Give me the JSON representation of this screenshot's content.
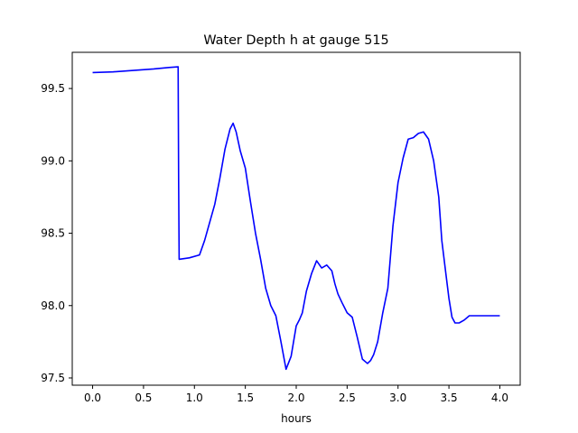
{
  "chart_data": {
    "type": "line",
    "title": "Water Depth h at gauge 515",
    "xlabel": "hours",
    "ylabel": "",
    "xlim": [
      -0.2,
      4.2
    ],
    "ylim": [
      97.45,
      99.75
    ],
    "xticks": [
      0.0,
      0.5,
      1.0,
      1.5,
      2.0,
      2.5,
      3.0,
      3.5,
      4.0
    ],
    "xtick_labels": [
      "0.0",
      "0.5",
      "1.0",
      "1.5",
      "2.0",
      "2.5",
      "3.0",
      "3.5",
      "4.0"
    ],
    "yticks": [
      97.5,
      98.0,
      98.5,
      99.0,
      99.5
    ],
    "ytick_labels": [
      "97.5",
      "98.0",
      "98.5",
      "99.0",
      "99.5"
    ],
    "grid": false,
    "series": [
      {
        "color": "#0000ff",
        "x": [
          0.0,
          0.2,
          0.4,
          0.6,
          0.75,
          0.84,
          0.845,
          0.85,
          0.95,
          1.05,
          1.1,
          1.2,
          1.25,
          1.3,
          1.35,
          1.38,
          1.41,
          1.45,
          1.5,
          1.55,
          1.6,
          1.65,
          1.7,
          1.75,
          1.8,
          1.85,
          1.9,
          1.95,
          2.0,
          2.03,
          2.06,
          2.1,
          2.15,
          2.2,
          2.25,
          2.3,
          2.35,
          2.38,
          2.41,
          2.45,
          2.5,
          2.55,
          2.6,
          2.65,
          2.7,
          2.73,
          2.76,
          2.8,
          2.85,
          2.9,
          2.95,
          3.0,
          3.05,
          3.1,
          3.15,
          3.2,
          3.25,
          3.3,
          3.35,
          3.4,
          3.43,
          3.47,
          3.5,
          3.53,
          3.56,
          3.6,
          3.65,
          3.7,
          3.75,
          3.8,
          3.85,
          3.9,
          3.95,
          4.0
        ],
        "y": [
          99.61,
          99.615,
          99.625,
          99.635,
          99.645,
          99.65,
          98.85,
          98.32,
          98.33,
          98.35,
          98.45,
          98.7,
          98.88,
          99.08,
          99.22,
          99.26,
          99.2,
          99.07,
          98.95,
          98.72,
          98.5,
          98.32,
          98.12,
          98.0,
          97.93,
          97.75,
          97.56,
          97.65,
          97.86,
          97.9,
          97.95,
          98.1,
          98.22,
          98.31,
          98.26,
          98.28,
          98.24,
          98.15,
          98.08,
          98.02,
          97.95,
          97.92,
          97.78,
          97.63,
          97.6,
          97.62,
          97.66,
          97.75,
          97.95,
          98.12,
          98.55,
          98.85,
          99.02,
          99.15,
          99.16,
          99.19,
          99.2,
          99.15,
          99.0,
          98.75,
          98.45,
          98.22,
          98.05,
          97.92,
          97.88,
          97.88,
          97.9,
          97.93,
          97.93,
          97.93,
          97.93,
          97.93,
          97.93,
          97.93
        ]
      }
    ]
  }
}
